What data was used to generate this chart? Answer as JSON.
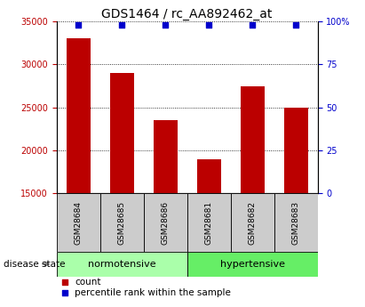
{
  "title": "GDS1464 / rc_AA892462_at",
  "samples": [
    "GSM28684",
    "GSM28685",
    "GSM28686",
    "GSM28681",
    "GSM28682",
    "GSM28683"
  ],
  "counts": [
    33000,
    29000,
    23500,
    19000,
    27500,
    25000
  ],
  "percentiles": [
    98,
    98,
    98,
    98,
    98,
    98
  ],
  "ylim_left": [
    15000,
    35000
  ],
  "ylim_right": [
    0,
    100
  ],
  "yticks_left": [
    15000,
    20000,
    25000,
    30000,
    35000
  ],
  "yticks_right": [
    0,
    25,
    50,
    75,
    100
  ],
  "bar_color": "#bb0000",
  "dot_color": "#0000cc",
  "groups": [
    {
      "label": "normotensive",
      "start": 0,
      "end": 2
    },
    {
      "label": "hypertensive",
      "start": 3,
      "end": 5
    }
  ],
  "group_colors": [
    "#aaffaa",
    "#66ee66"
  ],
  "sample_box_color": "#cccccc",
  "disease_state_label": "disease state",
  "legend_count_label": "count",
  "legend_percentile_label": "percentile rank within the sample",
  "title_fontsize": 10,
  "tick_fontsize": 7,
  "label_fontsize": 8
}
